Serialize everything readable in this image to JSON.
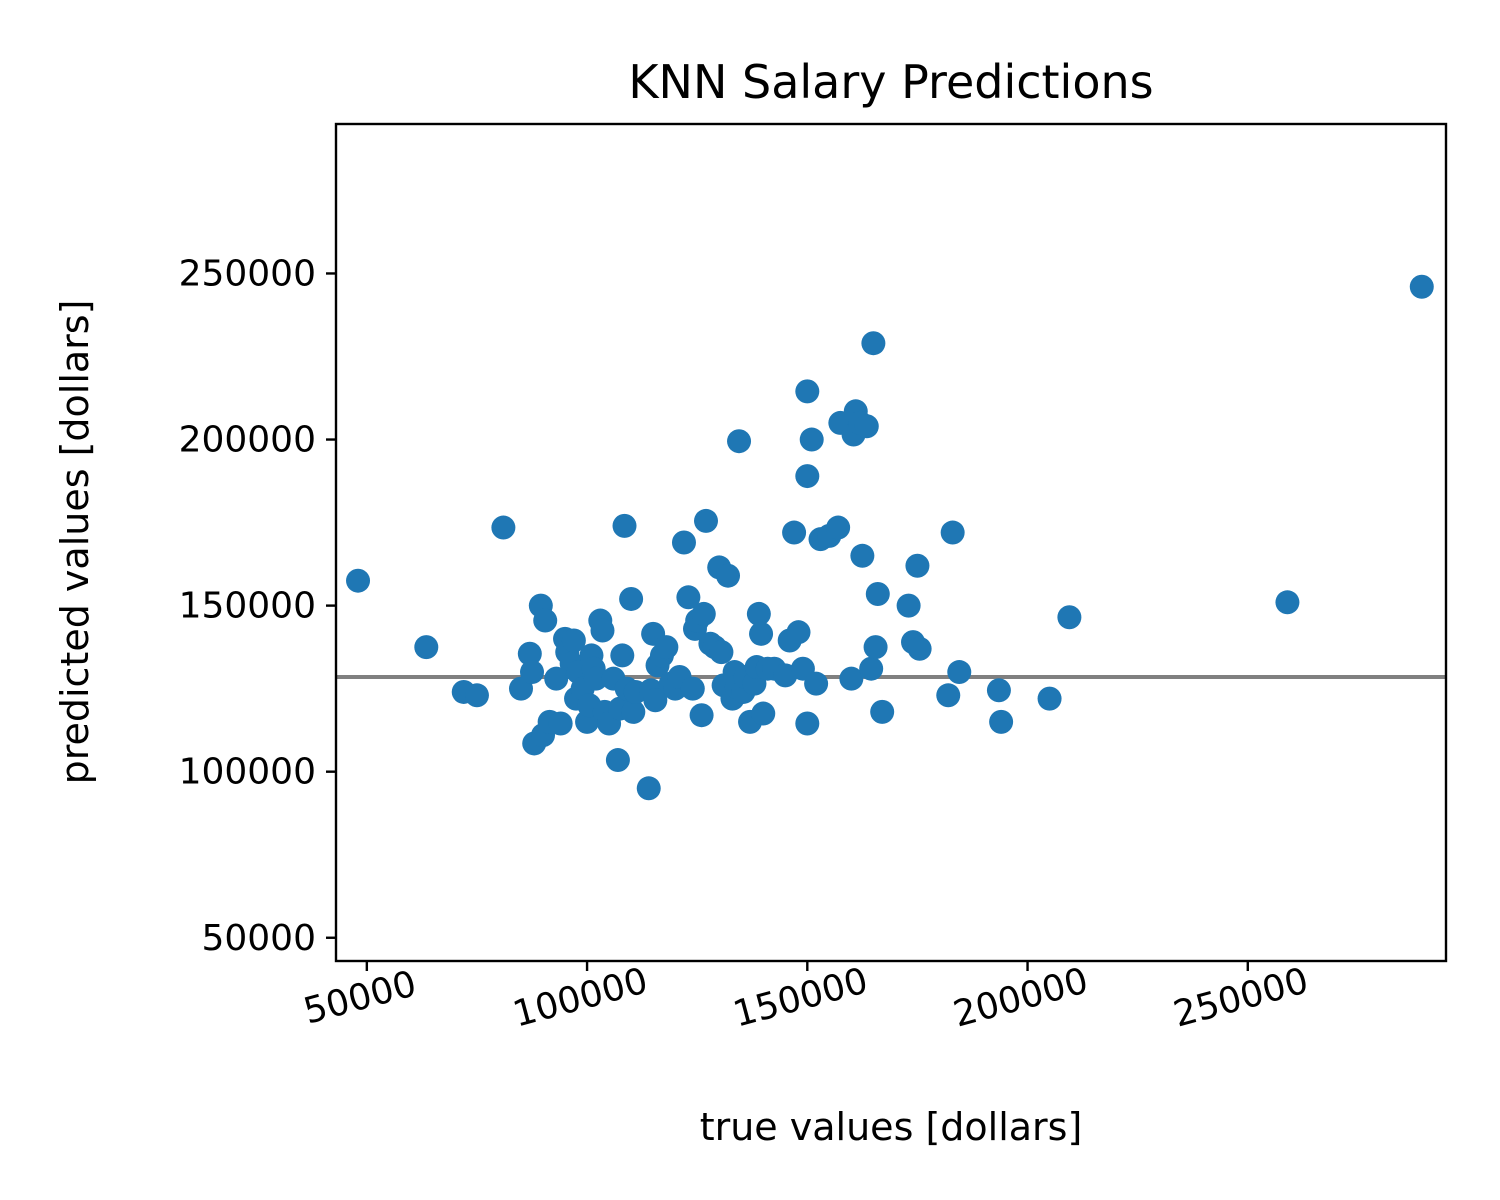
{
  "chart_data": {
    "type": "scatter",
    "title": "KNN Salary Predictions",
    "xlabel": "true values [dollars]",
    "ylabel": "predicted values [dollars]",
    "xlim": [
      43000,
      295000
    ],
    "ylim": [
      43000,
      295000
    ],
    "xticks": [
      50000,
      100000,
      150000,
      200000,
      250000
    ],
    "yticks": [
      50000,
      100000,
      150000,
      200000,
      250000
    ],
    "xtick_labels": [
      "50000",
      "100000",
      "150000",
      "200000",
      "250000"
    ],
    "ytick_labels": [
      "50000",
      "100000",
      "150000",
      "200000",
      "250000"
    ],
    "reference_line_y": 128500,
    "grid": false,
    "colors": {
      "points": "#1f77b4",
      "reference_line": "#808080"
    },
    "points": [
      [
        48000,
        157500
      ],
      [
        63500,
        137500
      ],
      [
        72000,
        124000
      ],
      [
        75000,
        123000
      ],
      [
        81000,
        173500
      ],
      [
        85000,
        125000
      ],
      [
        87000,
        135500
      ],
      [
        87500,
        130000
      ],
      [
        88000,
        108500
      ],
      [
        89500,
        150000
      ],
      [
        90000,
        111000
      ],
      [
        90500,
        145500
      ],
      [
        91500,
        115000
      ],
      [
        93000,
        128000
      ],
      [
        94000,
        114500
      ],
      [
        95000,
        140000
      ],
      [
        95500,
        136000
      ],
      [
        96500,
        132500
      ],
      [
        97000,
        139500
      ],
      [
        97500,
        122000
      ],
      [
        98000,
        130000
      ],
      [
        99000,
        125000
      ],
      [
        100000,
        115000
      ],
      [
        100500,
        120000
      ],
      [
        101000,
        135000
      ],
      [
        101500,
        131000
      ],
      [
        102000,
        128000
      ],
      [
        103000,
        145500
      ],
      [
        103500,
        142500
      ],
      [
        104000,
        118000
      ],
      [
        105000,
        114500
      ],
      [
        106000,
        128000
      ],
      [
        107000,
        103500
      ],
      [
        107500,
        119000
      ],
      [
        108000,
        135000
      ],
      [
        108500,
        174000
      ],
      [
        109000,
        125000
      ],
      [
        110000,
        152000
      ],
      [
        110500,
        118000
      ],
      [
        111000,
        124000
      ],
      [
        114000,
        95000
      ],
      [
        114500,
        124500
      ],
      [
        115000,
        141500
      ],
      [
        115500,
        121500
      ],
      [
        116000,
        132000
      ],
      [
        117000,
        135000
      ],
      [
        118000,
        137500
      ],
      [
        119000,
        126500
      ],
      [
        120000,
        125000
      ],
      [
        121000,
        128500
      ],
      [
        122000,
        169000
      ],
      [
        123000,
        152500
      ],
      [
        124000,
        125000
      ],
      [
        124500,
        143000
      ],
      [
        125000,
        145500
      ],
      [
        126000,
        117000
      ],
      [
        126500,
        147500
      ],
      [
        127000,
        175500
      ],
      [
        128000,
        138500
      ],
      [
        129000,
        137500
      ],
      [
        130000,
        161500
      ],
      [
        130500,
        136000
      ],
      [
        131000,
        126000
      ],
      [
        132000,
        159000
      ],
      [
        133000,
        122000
      ],
      [
        133500,
        130000
      ],
      [
        134000,
        125500
      ],
      [
        134500,
        199500
      ],
      [
        135500,
        124000
      ],
      [
        136000,
        128500
      ],
      [
        137000,
        115000
      ],
      [
        138000,
        126500
      ],
      [
        138500,
        131500
      ],
      [
        139000,
        147500
      ],
      [
        139500,
        141500
      ],
      [
        140000,
        117500
      ],
      [
        141000,
        131000
      ],
      [
        142500,
        131000
      ],
      [
        145000,
        129000
      ],
      [
        146000,
        139500
      ],
      [
        147000,
        172000
      ],
      [
        148000,
        142000
      ],
      [
        149000,
        131000
      ],
      [
        150000,
        114500
      ],
      [
        150000,
        189000
      ],
      [
        150000,
        214500
      ],
      [
        151000,
        200000
      ],
      [
        152000,
        126500
      ],
      [
        153000,
        170000
      ],
      [
        155000,
        171000
      ],
      [
        157000,
        173500
      ],
      [
        157500,
        205000
      ],
      [
        160000,
        128000
      ],
      [
        160500,
        201500
      ],
      [
        161000,
        208500
      ],
      [
        162000,
        205000
      ],
      [
        162500,
        165000
      ],
      [
        163500,
        204000
      ],
      [
        164500,
        131000
      ],
      [
        165000,
        229000
      ],
      [
        165500,
        137500
      ],
      [
        166000,
        153500
      ],
      [
        167000,
        118000
      ],
      [
        173000,
        150000
      ],
      [
        174000,
        139000
      ],
      [
        175000,
        162000
      ],
      [
        175500,
        137000
      ],
      [
        182000,
        123000
      ],
      [
        183000,
        172000
      ],
      [
        184500,
        130000
      ],
      [
        193500,
        124500
      ],
      [
        194000,
        115000
      ],
      [
        205000,
        122000
      ],
      [
        209500,
        146500
      ],
      [
        259000,
        151000
      ],
      [
        289500,
        246000
      ]
    ]
  }
}
